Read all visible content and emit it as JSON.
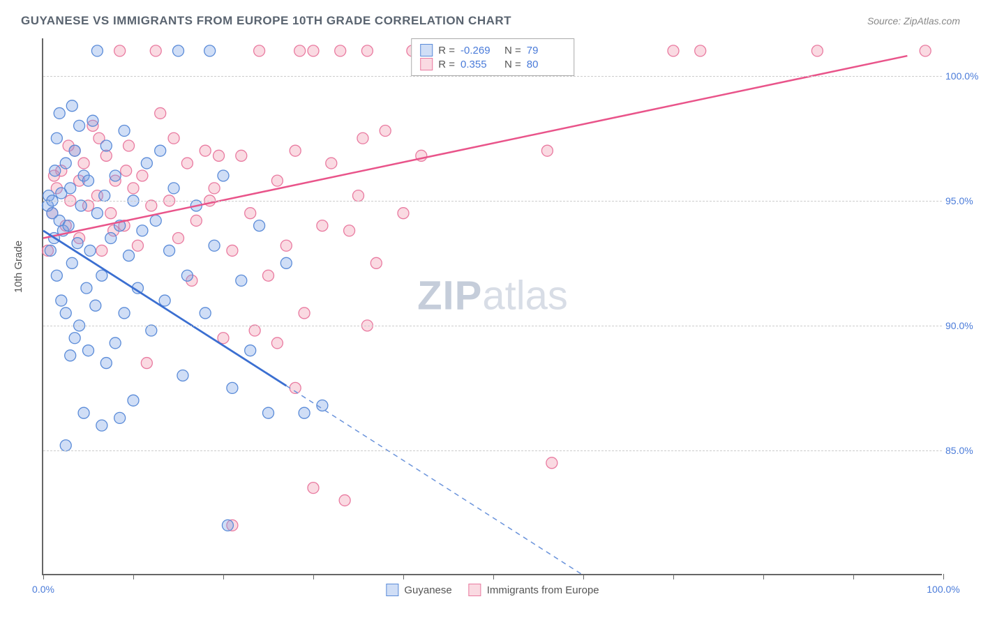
{
  "title": "GUYANESE VS IMMIGRANTS FROM EUROPE 10TH GRADE CORRELATION CHART",
  "source": "Source: ZipAtlas.com",
  "ylabel": "10th Grade",
  "watermark_zip": "ZIP",
  "watermark_rest": "atlas",
  "chart": {
    "type": "scatter",
    "xlim": [
      0,
      100
    ],
    "ylim": [
      80,
      101.5
    ],
    "yticks": [
      85.0,
      90.0,
      95.0,
      100.0
    ],
    "ytick_labels": [
      "85.0%",
      "90.0%",
      "95.0%",
      "100.0%"
    ],
    "xticks": [
      0,
      10,
      20,
      30,
      40,
      50,
      60,
      70,
      80,
      90,
      100
    ],
    "xtick_labels_shown": {
      "0": "0.0%",
      "100": "100.0%"
    },
    "background_color": "#ffffff",
    "grid_color": "#cccccc",
    "axis_color": "#666666",
    "label_color": "#4a7bd9",
    "title_color": "#5a6470",
    "title_fontsize": 17,
    "label_fontsize": 15,
    "tick_fontsize": 14
  },
  "series": {
    "guyanese": {
      "label": "Guyanese",
      "color_fill": "rgba(120,160,230,0.35)",
      "color_stroke": "#5a8bd8",
      "R": "-0.269",
      "N": "79",
      "trend": {
        "x1": 0,
        "y1": 93.8,
        "x2": 60,
        "y2": 80.0,
        "solid_until_x": 27
      },
      "points": [
        [
          0.5,
          94.8
        ],
        [
          0.6,
          95.2
        ],
        [
          0.8,
          93.0
        ],
        [
          1.0,
          94.5
        ],
        [
          1.0,
          95.0
        ],
        [
          1.2,
          93.5
        ],
        [
          1.3,
          96.2
        ],
        [
          1.5,
          97.5
        ],
        [
          1.5,
          92.0
        ],
        [
          1.8,
          94.2
        ],
        [
          2.0,
          95.3
        ],
        [
          2.0,
          91.0
        ],
        [
          2.2,
          93.8
        ],
        [
          2.5,
          96.5
        ],
        [
          2.5,
          90.5
        ],
        [
          2.8,
          94.0
        ],
        [
          3.0,
          95.5
        ],
        [
          3.0,
          88.8
        ],
        [
          3.2,
          92.5
        ],
        [
          3.5,
          97.0
        ],
        [
          3.5,
          89.5
        ],
        [
          3.8,
          93.3
        ],
        [
          4.0,
          98.0
        ],
        [
          4.0,
          90.0
        ],
        [
          4.2,
          94.8
        ],
        [
          4.5,
          96.0
        ],
        [
          4.8,
          91.5
        ],
        [
          5.0,
          95.8
        ],
        [
          5.0,
          89.0
        ],
        [
          5.2,
          93.0
        ],
        [
          5.5,
          98.2
        ],
        [
          5.8,
          90.8
        ],
        [
          6.0,
          94.5
        ],
        [
          6.0,
          101.0
        ],
        [
          6.5,
          92.0
        ],
        [
          6.8,
          95.2
        ],
        [
          7.0,
          97.2
        ],
        [
          7.0,
          88.5
        ],
        [
          7.5,
          93.5
        ],
        [
          8.0,
          96.0
        ],
        [
          8.0,
          89.3
        ],
        [
          8.5,
          94.0
        ],
        [
          9.0,
          97.8
        ],
        [
          9.0,
          90.5
        ],
        [
          9.5,
          92.8
        ],
        [
          10.0,
          95.0
        ],
        [
          10.0,
          87.0
        ],
        [
          10.5,
          91.5
        ],
        [
          11.0,
          93.8
        ],
        [
          11.5,
          96.5
        ],
        [
          12.0,
          89.8
        ],
        [
          12.5,
          94.2
        ],
        [
          13.0,
          97.0
        ],
        [
          13.5,
          91.0
        ],
        [
          14.0,
          93.0
        ],
        [
          14.5,
          95.5
        ],
        [
          15.0,
          101.0
        ],
        [
          15.5,
          88.0
        ],
        [
          16.0,
          92.0
        ],
        [
          17.0,
          94.8
        ],
        [
          18.0,
          90.5
        ],
        [
          18.5,
          101.0
        ],
        [
          19.0,
          93.2
        ],
        [
          20.0,
          96.0
        ],
        [
          21.0,
          87.5
        ],
        [
          22.0,
          91.8
        ],
        [
          23.0,
          89.0
        ],
        [
          24.0,
          94.0
        ],
        [
          25.0,
          86.5
        ],
        [
          27.0,
          92.5
        ],
        [
          29.0,
          86.5
        ],
        [
          31.0,
          86.8
        ],
        [
          2.5,
          85.2
        ],
        [
          4.5,
          86.5
        ],
        [
          6.5,
          86.0
        ],
        [
          8.5,
          86.3
        ],
        [
          1.8,
          98.5
        ],
        [
          3.2,
          98.8
        ],
        [
          20.5,
          82.0
        ]
      ]
    },
    "europe": {
      "label": "Immigrants from Europe",
      "color_fill": "rgba(240,140,165,0.32)",
      "color_stroke": "#e97aa0",
      "R": "0.355",
      "N": "80",
      "trend": {
        "x1": 0,
        "y1": 93.5,
        "x2": 96,
        "y2": 100.8
      },
      "points": [
        [
          0.5,
          93.0
        ],
        [
          1.0,
          94.5
        ],
        [
          1.5,
          95.5
        ],
        [
          2.0,
          96.2
        ],
        [
          2.5,
          94.0
        ],
        [
          3.0,
          95.0
        ],
        [
          3.5,
          97.0
        ],
        [
          4.0,
          93.5
        ],
        [
          4.5,
          96.5
        ],
        [
          5.0,
          94.8
        ],
        [
          5.5,
          98.0
        ],
        [
          6.0,
          95.2
        ],
        [
          6.5,
          93.0
        ],
        [
          7.0,
          96.8
        ],
        [
          7.5,
          94.5
        ],
        [
          8.0,
          95.8
        ],
        [
          8.5,
          101.0
        ],
        [
          9.0,
          94.0
        ],
        [
          9.5,
          97.2
        ],
        [
          10.0,
          95.5
        ],
        [
          10.5,
          93.2
        ],
        [
          11.0,
          96.0
        ],
        [
          12.0,
          94.8
        ],
        [
          13.0,
          98.5
        ],
        [
          14.0,
          95.0
        ],
        [
          15.0,
          93.5
        ],
        [
          16.0,
          96.5
        ],
        [
          17.0,
          94.2
        ],
        [
          18.0,
          97.0
        ],
        [
          19.0,
          95.5
        ],
        [
          20.0,
          89.5
        ],
        [
          21.0,
          93.0
        ],
        [
          22.0,
          96.8
        ],
        [
          23.0,
          94.5
        ],
        [
          24.0,
          101.0
        ],
        [
          25.0,
          92.0
        ],
        [
          26.0,
          95.8
        ],
        [
          27.0,
          93.2
        ],
        [
          28.0,
          97.0
        ],
        [
          29.0,
          90.5
        ],
        [
          30.0,
          101.0
        ],
        [
          31.0,
          94.0
        ],
        [
          32.0,
          96.5
        ],
        [
          33.0,
          101.0
        ],
        [
          34.0,
          93.8
        ],
        [
          35.0,
          95.2
        ],
        [
          36.0,
          101.0
        ],
        [
          37.0,
          92.5
        ],
        [
          38.0,
          97.8
        ],
        [
          40.0,
          94.5
        ],
        [
          26.0,
          89.3
        ],
        [
          28.0,
          87.5
        ],
        [
          30.0,
          83.5
        ],
        [
          33.5,
          83.0
        ],
        [
          36.0,
          90.0
        ],
        [
          41.0,
          101.0
        ],
        [
          28.5,
          101.0
        ],
        [
          56.0,
          97.0
        ],
        [
          56.5,
          84.5
        ],
        [
          58.0,
          101.0
        ],
        [
          70.0,
          101.0
        ],
        [
          73.0,
          101.0
        ],
        [
          86.0,
          101.0
        ],
        [
          98.0,
          101.0
        ],
        [
          21.0,
          82.0
        ],
        [
          19.5,
          96.8
        ],
        [
          11.5,
          88.5
        ],
        [
          4.0,
          95.8
        ],
        [
          2.8,
          97.2
        ],
        [
          1.2,
          96.0
        ],
        [
          6.2,
          97.5
        ],
        [
          7.8,
          93.8
        ],
        [
          9.2,
          96.2
        ],
        [
          12.5,
          101.0
        ],
        [
          14.5,
          97.5
        ],
        [
          16.5,
          91.8
        ],
        [
          18.5,
          95.0
        ],
        [
          23.5,
          89.8
        ],
        [
          35.5,
          97.5
        ],
        [
          42.0,
          96.8
        ]
      ]
    }
  },
  "legend_top": {
    "r_label": "R =",
    "n_label": "N ="
  }
}
